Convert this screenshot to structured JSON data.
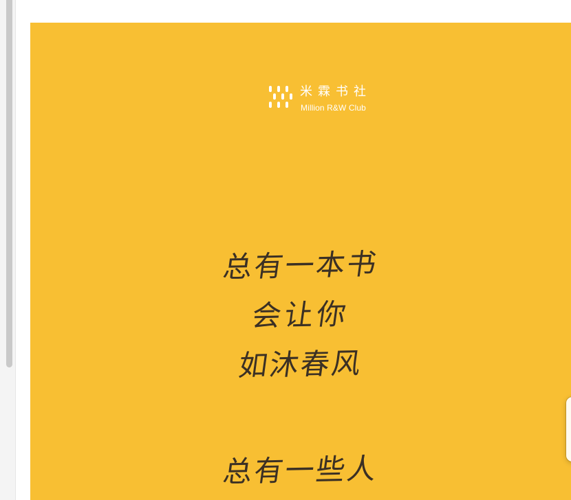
{
  "brand": {
    "logo_icon": "million-club-grid-icon",
    "chinese_name": "米霖书社",
    "english_name": "Million R&W Club"
  },
  "poem": {
    "lines": [
      "总有一本书",
      "会让你",
      "如沐春风",
      "总有一些人"
    ]
  },
  "colors": {
    "cover_background": "#f8bf33",
    "poem_text": "#3b3024",
    "logo_text": "#ffffff"
  }
}
